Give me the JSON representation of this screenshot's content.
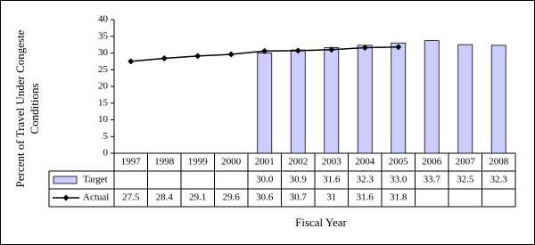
{
  "chart_data": {
    "type": "bar",
    "y_label": [
      "Percent of Travel Under Congeste",
      "Conditions"
    ],
    "x_label": "Fiscal Year",
    "categories": [
      "1997",
      "1998",
      "1999",
      "2000",
      "2001",
      "2002",
      "2003",
      "2004",
      "2005",
      "2006",
      "2007",
      "2008"
    ],
    "series": [
      {
        "name": "Target",
        "type": "bar",
        "color": "#ccccff",
        "values": [
          null,
          null,
          null,
          null,
          30.0,
          30.9,
          31.6,
          32.3,
          33.0,
          33.7,
          32.5,
          32.3
        ],
        "value_labels": [
          null,
          null,
          null,
          null,
          "30.0",
          "30.9",
          "31.6",
          "32.3",
          "33.0",
          "33.7",
          "32.5",
          "32.3"
        ]
      },
      {
        "name": "Actual",
        "type": "line",
        "color": "#000000",
        "values": [
          27.5,
          28.4,
          29.1,
          29.6,
          30.6,
          30.7,
          31.0,
          31.6,
          31.8,
          null,
          null,
          null
        ]
      }
    ],
    "ylim": [
      0,
      40
    ],
    "yticks": [
      0,
      5,
      10,
      15,
      20,
      25,
      30,
      35,
      40
    ],
    "grid": false
  }
}
